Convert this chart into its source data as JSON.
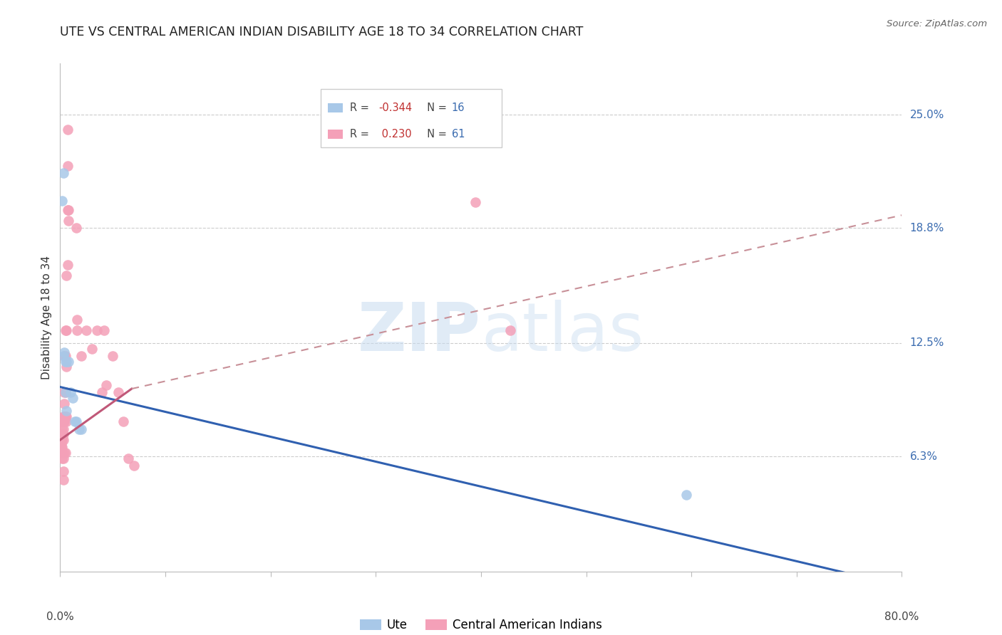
{
  "title": "UTE VS CENTRAL AMERICAN INDIAN DISABILITY AGE 18 TO 34 CORRELATION CHART",
  "source": "Source: ZipAtlas.com",
  "ylabel": "Disability Age 18 to 34",
  "ytick_vals": [
    0.063,
    0.125,
    0.188,
    0.25
  ],
  "ytick_labels": [
    "6.3%",
    "12.5%",
    "18.8%",
    "25.0%"
  ],
  "xlim": [
    0.0,
    0.8
  ],
  "ylim": [
    0.0,
    0.278
  ],
  "color_ute": "#A8C8E8",
  "color_ca": "#F4A0B8",
  "color_line_ute": "#3060B0",
  "color_line_ca_solid": "#C05878",
  "color_line_ca_dash": "#C89098",
  "watermark_color": "#C8DCF0",
  "ute_line": [
    0.0,
    0.101,
    0.8,
    -0.008
  ],
  "ca_line_solid": [
    0.0,
    0.072,
    0.068,
    0.1
  ],
  "ca_line_dash": [
    0.068,
    0.1,
    0.8,
    0.195
  ],
  "ute_points": [
    [
      0.002,
      0.203
    ],
    [
      0.003,
      0.218
    ],
    [
      0.003,
      0.118
    ],
    [
      0.004,
      0.12
    ],
    [
      0.005,
      0.115
    ],
    [
      0.005,
      0.098
    ],
    [
      0.006,
      0.115
    ],
    [
      0.006,
      0.088
    ],
    [
      0.008,
      0.115
    ],
    [
      0.01,
      0.098
    ],
    [
      0.012,
      0.095
    ],
    [
      0.014,
      0.082
    ],
    [
      0.015,
      0.082
    ],
    [
      0.018,
      0.078
    ],
    [
      0.02,
      0.078
    ],
    [
      0.595,
      0.042
    ]
  ],
  "ca_points": [
    [
      0.001,
      0.082
    ],
    [
      0.001,
      0.075
    ],
    [
      0.001,
      0.072
    ],
    [
      0.001,
      0.07
    ],
    [
      0.001,
      0.068
    ],
    [
      0.001,
      0.065
    ],
    [
      0.002,
      0.082
    ],
    [
      0.002,
      0.078
    ],
    [
      0.002,
      0.075
    ],
    [
      0.002,
      0.072
    ],
    [
      0.002,
      0.068
    ],
    [
      0.002,
      0.065
    ],
    [
      0.002,
      0.062
    ],
    [
      0.003,
      0.085
    ],
    [
      0.003,
      0.082
    ],
    [
      0.003,
      0.078
    ],
    [
      0.003,
      0.075
    ],
    [
      0.003,
      0.072
    ],
    [
      0.003,
      0.062
    ],
    [
      0.003,
      0.055
    ],
    [
      0.003,
      0.05
    ],
    [
      0.004,
      0.118
    ],
    [
      0.004,
      0.098
    ],
    [
      0.004,
      0.092
    ],
    [
      0.004,
      0.085
    ],
    [
      0.004,
      0.082
    ],
    [
      0.004,
      0.065
    ],
    [
      0.005,
      0.132
    ],
    [
      0.005,
      0.118
    ],
    [
      0.005,
      0.098
    ],
    [
      0.005,
      0.085
    ],
    [
      0.005,
      0.065
    ],
    [
      0.006,
      0.162
    ],
    [
      0.006,
      0.132
    ],
    [
      0.006,
      0.112
    ],
    [
      0.006,
      0.085
    ],
    [
      0.006,
      0.082
    ],
    [
      0.007,
      0.242
    ],
    [
      0.007,
      0.222
    ],
    [
      0.007,
      0.198
    ],
    [
      0.007,
      0.168
    ],
    [
      0.008,
      0.198
    ],
    [
      0.008,
      0.192
    ],
    [
      0.015,
      0.188
    ],
    [
      0.016,
      0.138
    ],
    [
      0.016,
      0.132
    ],
    [
      0.02,
      0.118
    ],
    [
      0.025,
      0.132
    ],
    [
      0.03,
      0.122
    ],
    [
      0.035,
      0.132
    ],
    [
      0.04,
      0.098
    ],
    [
      0.042,
      0.132
    ],
    [
      0.044,
      0.102
    ],
    [
      0.05,
      0.118
    ],
    [
      0.055,
      0.098
    ],
    [
      0.06,
      0.082
    ],
    [
      0.065,
      0.062
    ],
    [
      0.07,
      0.058
    ],
    [
      0.395,
      0.202
    ],
    [
      0.428,
      0.132
    ]
  ]
}
